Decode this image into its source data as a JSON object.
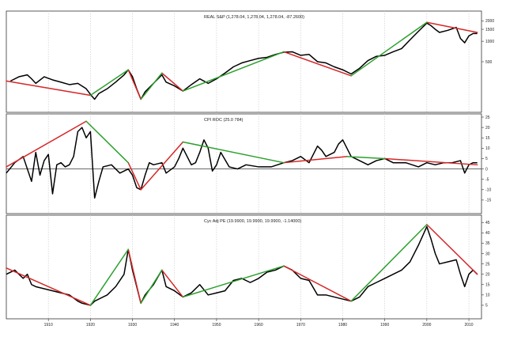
{
  "chart_data": [
    {
      "type": "line",
      "title": "REAL S&P (1,278.04, 1,278.04, 1,278.04, -87.2600)",
      "scale": "log",
      "ylim": [
        100,
        2500
      ],
      "yticks": [
        500,
        1000,
        1500,
        2000
      ],
      "series": [
        {
          "color": "#000000",
          "x": [
            1901,
            1903,
            1905,
            1906,
            1907,
            1909,
            1911,
            1913,
            1915,
            1917,
            1919,
            1920,
            1921,
            1922,
            1924,
            1926,
            1928,
            1929,
            1930,
            1931,
            1932,
            1933,
            1935,
            1937,
            1938,
            1940,
            1942,
            1944,
            1946,
            1948,
            1950,
            1952,
            1954,
            1956,
            1958,
            1960,
            1962,
            1964,
            1966,
            1968,
            1970,
            1972,
            1974,
            1976,
            1978,
            1980,
            1982,
            1984,
            1986,
            1988,
            1990,
            1992,
            1994,
            1996,
            1998,
            2000,
            2001,
            2002,
            2003,
            2005,
            2007,
            2008,
            2009,
            2010,
            2011,
            2012
          ],
          "y": [
            260,
            300,
            320,
            280,
            240,
            300,
            270,
            250,
            230,
            240,
            200,
            165,
            140,
            170,
            200,
            250,
            320,
            380,
            300,
            200,
            140,
            180,
            240,
            320,
            250,
            220,
            185,
            230,
            280,
            240,
            280,
            340,
            420,
            480,
            520,
            560,
            580,
            640,
            690,
            700,
            620,
            640,
            500,
            480,
            420,
            380,
            330,
            400,
            520,
            600,
            620,
            700,
            780,
            1050,
            1400,
            1850,
            1700,
            1500,
            1350,
            1450,
            1600,
            1100,
            950,
            1200,
            1300,
            1300
          ]
        },
        {
          "color": "#d62728",
          "segments": [
            [
              [
                1900,
                260
              ],
              [
                1920,
                160
              ]
            ],
            [
              [
                1929,
                380
              ],
              [
                1932,
                140
              ]
            ],
            [
              [
                1937,
                340
              ],
              [
                1942,
                185
              ]
            ],
            [
              [
                1966,
                700
              ],
              [
                1982,
                310
              ]
            ],
            [
              [
                2000,
                1900
              ],
              [
                2012,
                1350
              ]
            ]
          ]
        },
        {
          "color": "#2ca02c",
          "segments": [
            [
              [
                1920,
                160
              ],
              [
                1929,
                380
              ]
            ],
            [
              [
                1932,
                140
              ],
              [
                1937,
                340
              ]
            ],
            [
              [
                1942,
                185
              ],
              [
                1966,
                700
              ]
            ],
            [
              [
                1982,
                310
              ],
              [
                2000,
                1900
              ]
            ]
          ]
        }
      ]
    },
    {
      "type": "line",
      "title": "CPI ROC (25.0 784)",
      "ylim": [
        -20,
        25
      ],
      "yticks": [
        -15,
        -10,
        -5,
        0,
        5,
        10,
        15,
        20,
        25
      ],
      "series": [
        {
          "color": "#000000",
          "x": [
            1900,
            1902,
            1904,
            1905,
            1906,
            1907,
            1908,
            1909,
            1910,
            1911,
            1912,
            1913,
            1914,
            1915,
            1916,
            1917,
            1918,
            1919,
            1920,
            1921,
            1922,
            1923,
            1925,
            1927,
            1929,
            1930,
            1931,
            1932,
            1933,
            1934,
            1935,
            1937,
            1938,
            1940,
            1941,
            1942,
            1943,
            1944,
            1945,
            1946,
            1947,
            1948,
            1949,
            1950,
            1951,
            1953,
            1955,
            1957,
            1960,
            1963,
            1966,
            1968,
            1970,
            1972,
            1974,
            1975,
            1976,
            1978,
            1979,
            1980,
            1981,
            1982,
            1984,
            1986,
            1988,
            1990,
            1992,
            1995,
            1998,
            2000,
            2002,
            2004,
            2006,
            2008,
            2009,
            2010,
            2011,
            2012
          ],
          "y": [
            -2,
            3,
            6,
            0,
            -6,
            8,
            -3,
            4,
            7,
            -12,
            2,
            3,
            1,
            2,
            6,
            18,
            20,
            15,
            18,
            -14,
            -6,
            1,
            2,
            -2,
            0,
            -3,
            -9,
            -10,
            -3,
            3,
            2,
            3,
            -2,
            1,
            5,
            10,
            6,
            2,
            3,
            8,
            14,
            10,
            -1,
            2,
            8,
            1,
            0,
            2,
            1,
            1,
            3,
            4,
            6,
            3,
            11,
            9,
            6,
            8,
            12,
            14,
            10,
            6,
            4,
            2,
            4,
            5,
            3,
            3,
            1,
            3,
            2,
            3,
            3,
            4,
            -2,
            2,
            3,
            3
          ]
        },
        {
          "color": "#d62728",
          "segments": [
            [
              [
                1900,
                1
              ],
              [
                1919,
                23
              ]
            ],
            [
              [
                1929,
                3
              ],
              [
                1932,
                -10
              ]
            ],
            [
              [
                1932,
                -10
              ],
              [
                1942,
                13
              ]
            ],
            [
              [
                1966,
                3
              ],
              [
                1981,
                6
              ]
            ],
            [
              [
                1990,
                5
              ],
              [
                2012,
                2
              ]
            ]
          ]
        },
        {
          "color": "#2ca02c",
          "segments": [
            [
              [
                1919,
                23
              ],
              [
                1929,
                3
              ]
            ],
            [
              [
                1942,
                13
              ],
              [
                1966,
                3
              ]
            ],
            [
              [
                1981,
                6
              ],
              [
                1990,
                5
              ]
            ]
          ]
        }
      ]
    },
    {
      "type": "line",
      "title": "Cyc Adj PE (19.9900, 19.9900, 19.9900, -1.14000)",
      "ylim": [
        0,
        47
      ],
      "yticks": [
        5,
        10,
        15,
        20,
        25,
        30,
        35,
        40,
        45
      ],
      "series": [
        {
          "color": "#000000",
          "x": [
            1900,
            1902,
            1904,
            1905,
            1906,
            1907,
            1909,
            1911,
            1913,
            1915,
            1917,
            1918,
            1920,
            1921,
            1922,
            1924,
            1926,
            1928,
            1929,
            1930,
            1931,
            1932,
            1933,
            1935,
            1937,
            1938,
            1940,
            1942,
            1944,
            1946,
            1948,
            1950,
            1952,
            1954,
            1956,
            1958,
            1960,
            1962,
            1964,
            1966,
            1968,
            1970,
            1972,
            1974,
            1976,
            1978,
            1980,
            1982,
            1984,
            1986,
            1988,
            1990,
            1992,
            1994,
            1996,
            1998,
            2000,
            2001,
            2002,
            2003,
            2005,
            2007,
            2008,
            2009,
            2010,
            2011,
            2012
          ],
          "y": [
            20,
            22,
            18,
            20,
            15,
            14,
            13,
            12,
            11,
            10,
            7,
            6,
            5,
            7,
            8,
            10,
            14,
            20,
            32,
            22,
            14,
            6,
            10,
            15,
            22,
            14,
            12,
            9,
            11,
            15,
            10,
            11,
            12,
            17,
            18,
            16,
            18,
            21,
            22,
            24,
            22,
            18,
            17,
            10,
            10,
            9,
            8,
            7,
            9,
            14,
            16,
            18,
            20,
            22,
            26,
            34,
            43,
            37,
            30,
            25,
            26,
            27,
            20,
            14,
            20,
            22,
            20
          ]
        },
        {
          "color": "#d62728",
          "segments": [
            [
              [
                1900,
                23
              ],
              [
                1920,
                5
              ]
            ],
            [
              [
                1929,
                32
              ],
              [
                1932,
                6
              ]
            ],
            [
              [
                1937,
                22
              ],
              [
                1942,
                9
              ]
            ],
            [
              [
                1966,
                24
              ],
              [
                1982,
                7
              ]
            ],
            [
              [
                2000,
                44
              ],
              [
                2012,
                20
              ]
            ]
          ]
        },
        {
          "color": "#2ca02c",
          "segments": [
            [
              [
                1920,
                5
              ],
              [
                1929,
                32
              ]
            ],
            [
              [
                1932,
                6
              ],
              [
                1937,
                22
              ]
            ],
            [
              [
                1942,
                9
              ],
              [
                1966,
                24
              ]
            ],
            [
              [
                1982,
                7
              ],
              [
                2000,
                44
              ]
            ]
          ]
        }
      ]
    }
  ],
  "x_axis": {
    "range": [
      1900,
      2013
    ],
    "ticks": [
      1910,
      1920,
      1930,
      1940,
      1950,
      1960,
      1970,
      1980,
      1990,
      2000,
      2010
    ]
  }
}
